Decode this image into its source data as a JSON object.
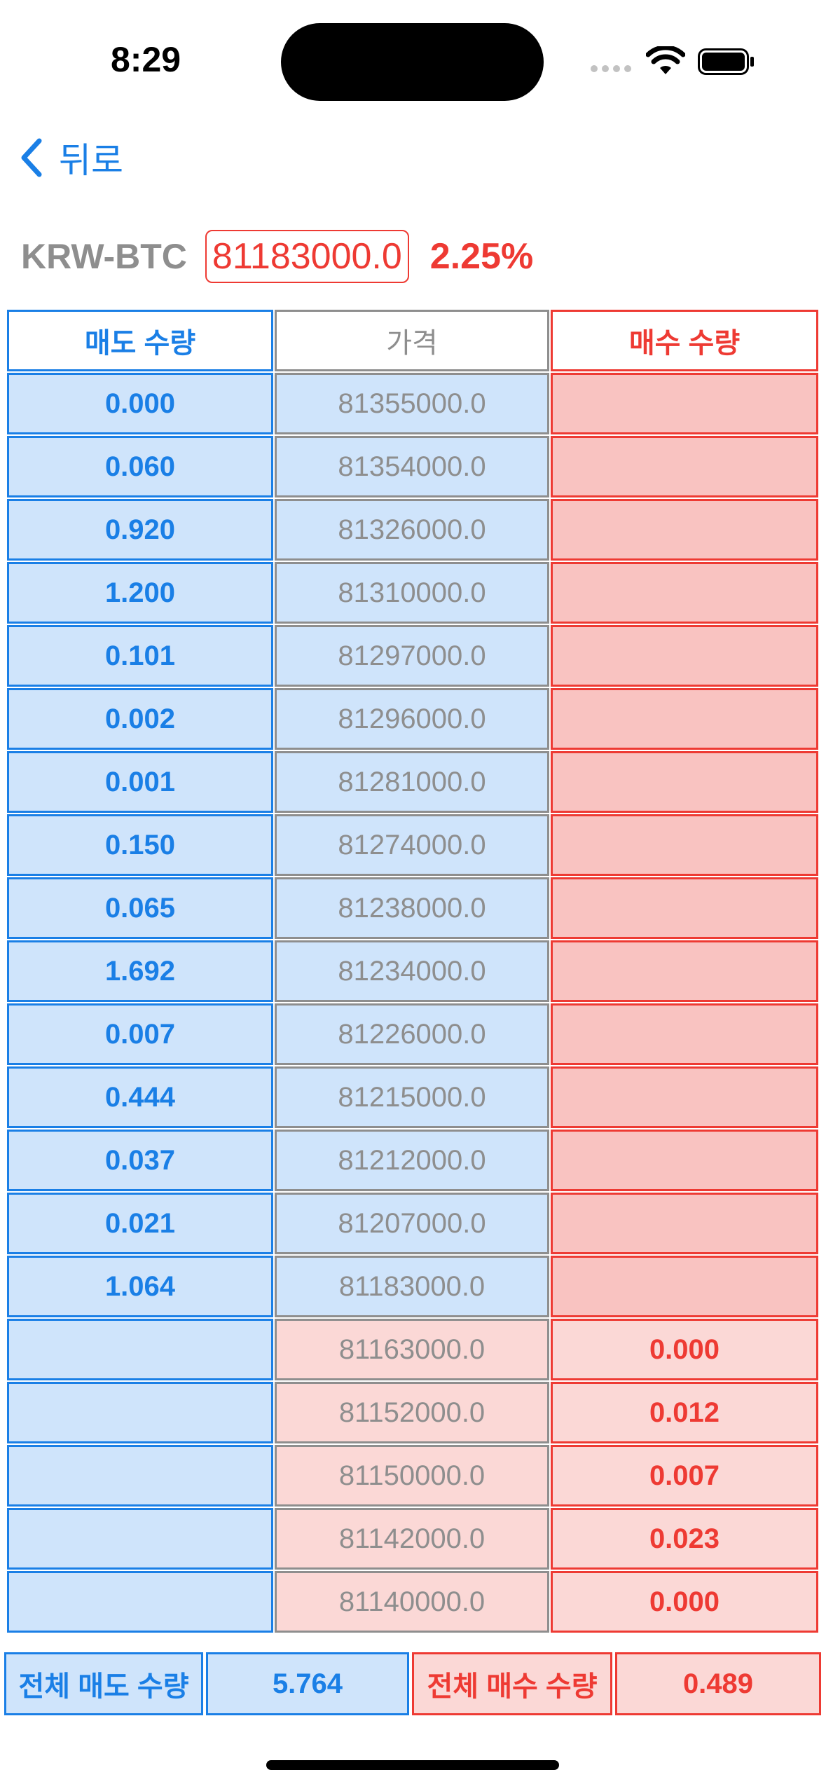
{
  "status": {
    "time": "8:29"
  },
  "nav": {
    "back_label": "뒤로"
  },
  "market": {
    "ticker": "KRW-BTC",
    "current_price": "81183000.0",
    "change_rate": "2.25%"
  },
  "columns": {
    "ask_header": "매도 수량",
    "price_header": "가격",
    "bid_header": "매수 수량"
  },
  "asks": [
    {
      "qty": "0.000",
      "price": "81355000.0"
    },
    {
      "qty": "0.060",
      "price": "81354000.0"
    },
    {
      "qty": "0.920",
      "price": "81326000.0"
    },
    {
      "qty": "1.200",
      "price": "81310000.0"
    },
    {
      "qty": "0.101",
      "price": "81297000.0"
    },
    {
      "qty": "0.002",
      "price": "81296000.0"
    },
    {
      "qty": "0.001",
      "price": "81281000.0"
    },
    {
      "qty": "0.150",
      "price": "81274000.0"
    },
    {
      "qty": "0.065",
      "price": "81238000.0"
    },
    {
      "qty": "1.692",
      "price": "81234000.0"
    },
    {
      "qty": "0.007",
      "price": "81226000.0"
    },
    {
      "qty": "0.444",
      "price": "81215000.0"
    },
    {
      "qty": "0.037",
      "price": "81212000.0"
    },
    {
      "qty": "0.021",
      "price": "81207000.0"
    },
    {
      "qty": "1.064",
      "price": "81183000.0"
    }
  ],
  "bids": [
    {
      "qty": "0.000",
      "price": "81163000.0"
    },
    {
      "qty": "0.012",
      "price": "81152000.0"
    },
    {
      "qty": "0.007",
      "price": "81150000.0"
    },
    {
      "qty": "0.023",
      "price": "81142000.0"
    },
    {
      "qty": "0.000",
      "price": "81140000.0"
    }
  ],
  "totals": {
    "ask_label": "전체 매도 수량",
    "ask_value": "5.764",
    "bid_label": "전체 매수 수량",
    "bid_value": "0.489"
  },
  "colors": {
    "ask": "#1a7fe6",
    "bid": "#ee3a33",
    "neutral": "#8e8e8e"
  }
}
